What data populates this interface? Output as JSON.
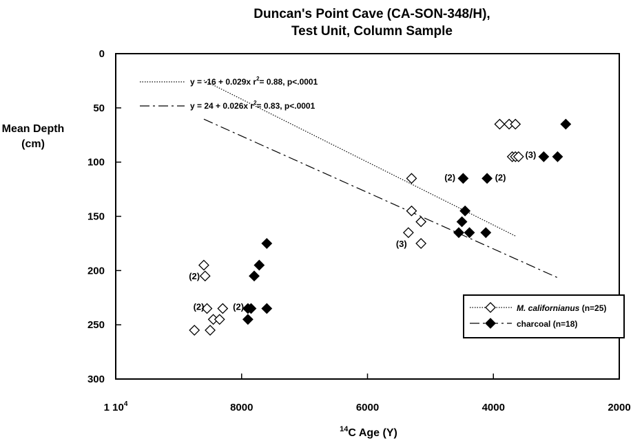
{
  "chart_data": {
    "type": "scatter",
    "title_line1": "Duncan's Point Cave (CA-SON-348/H),",
    "title_line2": "Test Unit, Column Sample",
    "ylabel_line1": "Mean Depth",
    "ylabel_line2": "(cm)",
    "xlabel_sup": "14",
    "xlabel_main": "C Age (Y)",
    "xlim": [
      10000,
      2000
    ],
    "ylim": [
      0,
      300
    ],
    "y_reversed": true,
    "x_reversed": true,
    "xticks": [
      {
        "value": 10000,
        "label": "1 10",
        "sup": "4"
      },
      {
        "value": 8000,
        "label": "8000",
        "sup": ""
      },
      {
        "value": 6000,
        "label": "6000",
        "sup": ""
      },
      {
        "value": 4000,
        "label": "4000",
        "sup": ""
      },
      {
        "value": 2000,
        "label": "2000",
        "sup": ""
      }
    ],
    "yticks": [
      {
        "value": 0,
        "label": "0"
      },
      {
        "value": 50,
        "label": "50"
      },
      {
        "value": 100,
        "label": "100"
      },
      {
        "value": 150,
        "label": "150"
      },
      {
        "value": 200,
        "label": "200"
      },
      {
        "value": 250,
        "label": "250"
      },
      {
        "value": 300,
        "label": "300"
      }
    ],
    "grid": false,
    "legend_position": "bottom-right",
    "series": [
      {
        "name": "M. californianus",
        "name_suffix": " (n=25)",
        "marker": "diamond-open",
        "line_style": "dotted",
        "points": [
          [
            8750,
            255
          ],
          [
            8600,
            195
          ],
          [
            8580,
            205
          ],
          [
            8550,
            235
          ],
          [
            8500,
            255
          ],
          [
            8450,
            245
          ],
          [
            8350,
            245
          ],
          [
            8300,
            235
          ],
          [
            5300,
            115
          ],
          [
            5300,
            145
          ],
          [
            5350,
            165
          ],
          [
            5150,
            155
          ],
          [
            5150,
            175
          ],
          [
            3900,
            65
          ],
          [
            3750,
            65
          ],
          [
            3650,
            65
          ],
          [
            3700,
            95
          ],
          [
            3650,
            95
          ],
          [
            3600,
            95
          ]
        ]
      },
      {
        "name": "charcoal",
        "name_suffix": " (n=18)",
        "marker": "diamond-filled",
        "line_style": "dashdot",
        "points": [
          [
            7900,
            235
          ],
          [
            7850,
            235
          ],
          [
            7900,
            245
          ],
          [
            7800,
            205
          ],
          [
            7720,
            195
          ],
          [
            7600,
            175
          ],
          [
            7600,
            235
          ],
          [
            4550,
            165
          ],
          [
            4500,
            155
          ],
          [
            4450,
            145
          ],
          [
            4380,
            165
          ],
          [
            4120,
            165
          ],
          [
            4480,
            115
          ],
          [
            4100,
            115
          ],
          [
            3200,
            95
          ],
          [
            2980,
            95
          ],
          [
            2850,
            65
          ]
        ]
      }
    ],
    "regressions": [
      {
        "series": "M. californianus",
        "intercept": -16,
        "slope": 0.029,
        "x_range": [
          8600,
          3650
        ],
        "label": "y = -16 + 0.029x",
        "r2_prefix": "r",
        "r2_sup": "2",
        "r2_text": "= 0.88, p<.0001"
      },
      {
        "series": "charcoal",
        "intercept": 24,
        "slope": 0.026,
        "x_range": [
          8600,
          2950
        ],
        "label": "y = 24 + 0.026x",
        "r2_prefix": "r",
        "r2_sup": "2",
        "r2_text": "= 0.83, p<.0001"
      }
    ],
    "annotations": [
      {
        "text": "(2)",
        "x": 8620,
        "y": 205,
        "anchor": "end"
      },
      {
        "text": "(2)",
        "x": 8550,
        "y": 233,
        "anchor": "end"
      },
      {
        "text": "(2)",
        "x": 7920,
        "y": 233,
        "anchor": "end"
      },
      {
        "text": "(3)",
        "x": 5330,
        "y": 175,
        "anchor": "end"
      },
      {
        "text": "(2)",
        "x": 4560,
        "y": 114,
        "anchor": "end"
      },
      {
        "text": "(2)",
        "x": 4040,
        "y": 114,
        "anchor": "start"
      },
      {
        "text": "(3)",
        "x": 3560,
        "y": 93,
        "anchor": "start"
      }
    ]
  }
}
